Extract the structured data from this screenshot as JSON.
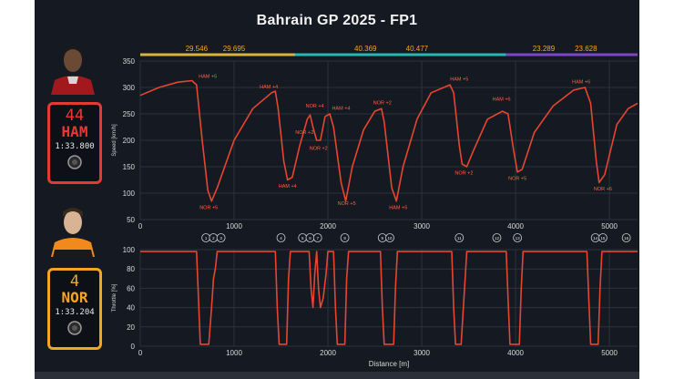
{
  "title": "Bahrain GP 2025 - FP1",
  "colors": {
    "background": "#151a22",
    "trace": "#e8452e",
    "ham_card": "#e53935",
    "nor_card": "#f5a524",
    "sector1": "#d9b43a",
    "sector2": "#27b8b0",
    "sector3": "#7b45c9",
    "label": "#ff6040"
  },
  "drivers": [
    {
      "number": "44",
      "code": "HAM",
      "lap_time": "1:33.800"
    },
    {
      "number": "4",
      "code": "NOR",
      "lap_time": "1:33.204"
    }
  ],
  "sector_bar": {
    "segments": [
      {
        "from": 0,
        "to": 1650,
        "color": "#d9b43a"
      },
      {
        "from": 1650,
        "to": 3900,
        "color": "#27b8b0"
      },
      {
        "from": 3900,
        "to": 5300,
        "color": "#7b45c9"
      }
    ],
    "times": [
      {
        "x": 600,
        "text": "29.546"
      },
      {
        "x": 1000,
        "text": "29.695"
      },
      {
        "x": 2400,
        "text": "40.369"
      },
      {
        "x": 2950,
        "text": "40.477"
      },
      {
        "x": 4300,
        "text": "23.289"
      },
      {
        "x": 4750,
        "text": "23.628"
      }
    ]
  },
  "corners": [
    {
      "x": 700,
      "label": "1"
    },
    {
      "x": 780,
      "label": "2"
    },
    {
      "x": 860,
      "label": "3"
    },
    {
      "x": 1500,
      "label": "4"
    },
    {
      "x": 1730,
      "label": "5"
    },
    {
      "x": 1810,
      "label": "6"
    },
    {
      "x": 1890,
      "label": "7"
    },
    {
      "x": 2180,
      "label": "8"
    },
    {
      "x": 2580,
      "label": "9"
    },
    {
      "x": 2660,
      "label": "10"
    },
    {
      "x": 3400,
      "label": "11"
    },
    {
      "x": 3800,
      "label": "12"
    },
    {
      "x": 4020,
      "label": "13"
    },
    {
      "x": 4850,
      "label": "14"
    },
    {
      "x": 4930,
      "label": "15"
    },
    {
      "x": 5180,
      "label": "16"
    }
  ],
  "chart_data": [
    {
      "type": "line",
      "ylabel": "Speed [km/h]",
      "xlim": [
        0,
        5300
      ],
      "ylim": [
        50,
        350
      ],
      "xticks": [
        0,
        1000,
        2000,
        3000,
        4000,
        5000
      ],
      "yticks": [
        50,
        100,
        150,
        200,
        250,
        300,
        350
      ],
      "grid": true,
      "series": [
        {
          "points": [
            [
              0,
              285
            ],
            [
              200,
              300
            ],
            [
              400,
              310
            ],
            [
              550,
              313
            ],
            [
              600,
              305
            ],
            [
              660,
              200
            ],
            [
              720,
              105
            ],
            [
              760,
              85
            ],
            [
              820,
              110
            ],
            [
              1000,
              200
            ],
            [
              1200,
              260
            ],
            [
              1400,
              290
            ],
            [
              1440,
              293
            ],
            [
              1470,
              260
            ],
            [
              1530,
              160
            ],
            [
              1570,
              125
            ],
            [
              1620,
              130
            ],
            [
              1700,
              190
            ],
            [
              1780,
              240
            ],
            [
              1810,
              248
            ],
            [
              1840,
              225
            ],
            [
              1880,
              200
            ],
            [
              1920,
              200
            ],
            [
              1970,
              245
            ],
            [
              2020,
              250
            ],
            [
              2060,
              225
            ],
            [
              2140,
              120
            ],
            [
              2190,
              85
            ],
            [
              2260,
              150
            ],
            [
              2380,
              220
            ],
            [
              2500,
              255
            ],
            [
              2570,
              260
            ],
            [
              2600,
              235
            ],
            [
              2680,
              110
            ],
            [
              2730,
              85
            ],
            [
              2800,
              150
            ],
            [
              2950,
              240
            ],
            [
              3100,
              290
            ],
            [
              3300,
              305
            ],
            [
              3340,
              290
            ],
            [
              3400,
              190
            ],
            [
              3430,
              155
            ],
            [
              3480,
              150
            ],
            [
              3550,
              180
            ],
            [
              3700,
              240
            ],
            [
              3860,
              255
            ],
            [
              3920,
              250
            ],
            [
              3980,
              180
            ],
            [
              4020,
              140
            ],
            [
              4070,
              145
            ],
            [
              4200,
              215
            ],
            [
              4400,
              265
            ],
            [
              4620,
              295
            ],
            [
              4740,
              300
            ],
            [
              4800,
              270
            ],
            [
              4860,
              160
            ],
            [
              4890,
              120
            ],
            [
              4950,
              135
            ],
            [
              5080,
              230
            ],
            [
              5200,
              260
            ],
            [
              5300,
              270
            ]
          ]
        }
      ],
      "annotations": [
        {
          "x": 720,
          "y": 318,
          "text": "HAM +5"
        },
        {
          "x": 1370,
          "y": 298,
          "text": "HAM +4"
        },
        {
          "x": 1860,
          "y": 262,
          "text": "NOR +4"
        },
        {
          "x": 2140,
          "y": 258,
          "text": "HAM +4"
        },
        {
          "x": 2580,
          "y": 268,
          "text": "NOR +2"
        },
        {
          "x": 3400,
          "y": 313,
          "text": "HAM +5"
        },
        {
          "x": 3850,
          "y": 275,
          "text": "HAM +6"
        },
        {
          "x": 4700,
          "y": 308,
          "text": "HAM +6"
        },
        {
          "x": 1750,
          "y": 212,
          "text": "NOR +2"
        },
        {
          "x": 1900,
          "y": 182,
          "text": "NOR +2"
        },
        {
          "x": 1570,
          "y": 110,
          "text": "HAM +4"
        },
        {
          "x": 730,
          "y": 70,
          "text": "NOR +5"
        },
        {
          "x": 2200,
          "y": 78,
          "text": "NOR +5"
        },
        {
          "x": 2750,
          "y": 70,
          "text": "HAM +5"
        },
        {
          "x": 3450,
          "y": 135,
          "text": "NOR +2"
        },
        {
          "x": 4020,
          "y": 125,
          "text": "NOR +5"
        },
        {
          "x": 4930,
          "y": 105,
          "text": "NOR +6"
        }
      ]
    },
    {
      "type": "line",
      "ylabel": "Throttle [%]",
      "xlabel": "Distance [m]",
      "xlim": [
        0,
        5300
      ],
      "ylim": [
        0,
        100
      ],
      "xticks": [
        0,
        1000,
        2000,
        3000,
        4000,
        5000
      ],
      "yticks": [
        0,
        20,
        40,
        60,
        80,
        100
      ],
      "grid": true,
      "series": [
        {
          "points": [
            [
              0,
              98
            ],
            [
              560,
              98
            ],
            [
              600,
              98
            ],
            [
              620,
              50
            ],
            [
              640,
              2
            ],
            [
              730,
              2
            ],
            [
              760,
              40
            ],
            [
              780,
              70
            ],
            [
              800,
              80
            ],
            [
              820,
              98
            ],
            [
              1420,
              98
            ],
            [
              1440,
              98
            ],
            [
              1460,
              40
            ],
            [
              1480,
              2
            ],
            [
              1560,
              2
            ],
            [
              1580,
              70
            ],
            [
              1600,
              98
            ],
            [
              1800,
              98
            ],
            [
              1820,
              60
            ],
            [
              1840,
              40
            ],
            [
              1860,
              75
            ],
            [
              1880,
              98
            ],
            [
              1900,
              60
            ],
            [
              1920,
              40
            ],
            [
              1950,
              50
            ],
            [
              1980,
              75
            ],
            [
              2000,
              98
            ],
            [
              2060,
              98
            ],
            [
              2080,
              40
            ],
            [
              2100,
              2
            ],
            [
              2180,
              2
            ],
            [
              2200,
              70
            ],
            [
              2220,
              98
            ],
            [
              2560,
              98
            ],
            [
              2580,
              40
            ],
            [
              2600,
              2
            ],
            [
              2700,
              2
            ],
            [
              2720,
              60
            ],
            [
              2740,
              98
            ],
            [
              3320,
              98
            ],
            [
              3340,
              40
            ],
            [
              3360,
              2
            ],
            [
              3420,
              2
            ],
            [
              3450,
              50
            ],
            [
              3480,
              98
            ],
            [
              3900,
              98
            ],
            [
              3920,
              50
            ],
            [
              3940,
              2
            ],
            [
              4040,
              2
            ],
            [
              4060,
              60
            ],
            [
              4080,
              98
            ],
            [
              4760,
              98
            ],
            [
              4780,
              50
            ],
            [
              4800,
              2
            ],
            [
              4880,
              2
            ],
            [
              4900,
              60
            ],
            [
              4920,
              98
            ],
            [
              5300,
              98
            ]
          ]
        }
      ]
    }
  ]
}
